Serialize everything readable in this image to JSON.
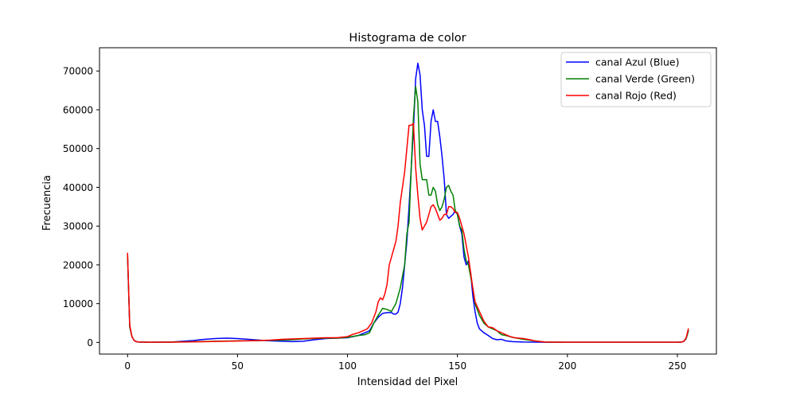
{
  "chart_data": {
    "type": "line",
    "title": "Histograma de color",
    "xlabel": "Intensidad del Pixel",
    "ylabel": "Frecuencia",
    "xlim": [
      -12.75,
      267.75
    ],
    "ylim": [
      -3000,
      76000
    ],
    "xticks": [
      0,
      50,
      100,
      150,
      200,
      250
    ],
    "yticks": [
      0,
      10000,
      20000,
      30000,
      40000,
      50000,
      60000,
      70000
    ],
    "legend_position": "top-right",
    "grid": false,
    "series": [
      {
        "name": "canal Azul (Blue)",
        "color": "#0000ff",
        "points": [
          [
            0,
            22500
          ],
          [
            1,
            4000
          ],
          [
            2,
            1500
          ],
          [
            3,
            500
          ],
          [
            4,
            200
          ],
          [
            5,
            100
          ],
          [
            10,
            50
          ],
          [
            20,
            100
          ],
          [
            30,
            500
          ],
          [
            35,
            800
          ],
          [
            40,
            1000
          ],
          [
            45,
            1100
          ],
          [
            50,
            1000
          ],
          [
            55,
            800
          ],
          [
            60,
            600
          ],
          [
            65,
            400
          ],
          [
            70,
            300
          ],
          [
            75,
            200
          ],
          [
            80,
            300
          ],
          [
            85,
            700
          ],
          [
            90,
            1000
          ],
          [
            95,
            1100
          ],
          [
            100,
            1200
          ],
          [
            105,
            1800
          ],
          [
            110,
            3000
          ],
          [
            112,
            5000
          ],
          [
            114,
            6500
          ],
          [
            116,
            7500
          ],
          [
            118,
            7700
          ],
          [
            120,
            7700
          ],
          [
            121,
            7300
          ],
          [
            122,
            7300
          ],
          [
            123,
            7800
          ],
          [
            124,
            10000
          ],
          [
            125,
            14000
          ],
          [
            126,
            20000
          ],
          [
            127,
            26000
          ],
          [
            128,
            35000
          ],
          [
            129,
            45000
          ],
          [
            130,
            55000
          ],
          [
            131,
            68000
          ],
          [
            132,
            72000
          ],
          [
            133,
            69000
          ],
          [
            134,
            60000
          ],
          [
            135,
            56000
          ],
          [
            136,
            48000
          ],
          [
            137,
            48000
          ],
          [
            138,
            57000
          ],
          [
            139,
            60000
          ],
          [
            140,
            57000
          ],
          [
            141,
            57000
          ],
          [
            142,
            53000
          ],
          [
            143,
            48000
          ],
          [
            144,
            42000
          ],
          [
            145,
            33000
          ],
          [
            146,
            32000
          ],
          [
            147,
            32500
          ],
          [
            148,
            33000
          ],
          [
            149,
            34000
          ],
          [
            150,
            33000
          ],
          [
            151,
            30000
          ],
          [
            152,
            28000
          ],
          [
            153,
            22000
          ],
          [
            154,
            20000
          ],
          [
            155,
            21000
          ],
          [
            156,
            18000
          ],
          [
            157,
            12000
          ],
          [
            158,
            8000
          ],
          [
            159,
            5000
          ],
          [
            160,
            3500
          ],
          [
            162,
            2500
          ],
          [
            164,
            1800
          ],
          [
            166,
            1000
          ],
          [
            168,
            700
          ],
          [
            170,
            800
          ],
          [
            172,
            400
          ],
          [
            175,
            200
          ],
          [
            180,
            100
          ],
          [
            190,
            50
          ],
          [
            200,
            40
          ],
          [
            250,
            40
          ],
          [
            252,
            100
          ],
          [
            253,
            300
          ],
          [
            254,
            1000
          ],
          [
            255,
            3000
          ]
        ]
      },
      {
        "name": "canal Verde (Green)",
        "color": "#008000",
        "points": [
          [
            0,
            22500
          ],
          [
            1,
            4000
          ],
          [
            2,
            1500
          ],
          [
            3,
            500
          ],
          [
            4,
            200
          ],
          [
            5,
            100
          ],
          [
            10,
            50
          ],
          [
            20,
            100
          ],
          [
            30,
            200
          ],
          [
            40,
            300
          ],
          [
            50,
            400
          ],
          [
            60,
            500
          ],
          [
            70,
            600
          ],
          [
            75,
            700
          ],
          [
            80,
            900
          ],
          [
            85,
            1000
          ],
          [
            90,
            1100
          ],
          [
            95,
            1100
          ],
          [
            100,
            1300
          ],
          [
            105,
            1800
          ],
          [
            108,
            2000
          ],
          [
            110,
            2500
          ],
          [
            112,
            5000
          ],
          [
            114,
            7000
          ],
          [
            116,
            8800
          ],
          [
            118,
            8500
          ],
          [
            120,
            8000
          ],
          [
            122,
            10000
          ],
          [
            124,
            14000
          ],
          [
            126,
            20000
          ],
          [
            127,
            28000
          ],
          [
            128,
            31000
          ],
          [
            129,
            45000
          ],
          [
            130,
            58000
          ],
          [
            131,
            66000
          ],
          [
            132,
            62000
          ],
          [
            133,
            46000
          ],
          [
            134,
            42000
          ],
          [
            135,
            42000
          ],
          [
            136,
            42000
          ],
          [
            137,
            38000
          ],
          [
            138,
            38000
          ],
          [
            139,
            40000
          ],
          [
            140,
            39000
          ],
          [
            141,
            35500
          ],
          [
            142,
            34000
          ],
          [
            143,
            35000
          ],
          [
            144,
            37000
          ],
          [
            145,
            40000
          ],
          [
            146,
            40500
          ],
          [
            147,
            39000
          ],
          [
            148,
            38000
          ],
          [
            149,
            34000
          ],
          [
            150,
            33000
          ],
          [
            151,
            30000
          ],
          [
            152,
            29000
          ],
          [
            153,
            24000
          ],
          [
            154,
            21000
          ],
          [
            155,
            20000
          ],
          [
            156,
            17000
          ],
          [
            157,
            14000
          ],
          [
            158,
            10000
          ],
          [
            160,
            7000
          ],
          [
            162,
            5000
          ],
          [
            164,
            4000
          ],
          [
            166,
            3500
          ],
          [
            168,
            3000
          ],
          [
            170,
            2000
          ],
          [
            172,
            1800
          ],
          [
            175,
            1300
          ],
          [
            180,
            800
          ],
          [
            185,
            400
          ],
          [
            190,
            100
          ],
          [
            200,
            50
          ],
          [
            250,
            50
          ],
          [
            252,
            100
          ],
          [
            253,
            300
          ],
          [
            254,
            1000
          ],
          [
            255,
            3000
          ]
        ]
      },
      {
        "name": "canal Rojo (Red)",
        "color": "#ff0000",
        "points": [
          [
            0,
            23000
          ],
          [
            1,
            4500
          ],
          [
            2,
            1500
          ],
          [
            3,
            500
          ],
          [
            4,
            200
          ],
          [
            5,
            100
          ],
          [
            10,
            50
          ],
          [
            20,
            50
          ],
          [
            30,
            150
          ],
          [
            40,
            250
          ],
          [
            50,
            350
          ],
          [
            60,
            500
          ],
          [
            65,
            600
          ],
          [
            70,
            800
          ],
          [
            75,
            900
          ],
          [
            80,
            1000
          ],
          [
            85,
            1100
          ],
          [
            90,
            1200
          ],
          [
            95,
            1200
          ],
          [
            100,
            1500
          ],
          [
            102,
            2000
          ],
          [
            105,
            2500
          ],
          [
            107,
            3000
          ],
          [
            109,
            3500
          ],
          [
            111,
            5000
          ],
          [
            113,
            8000
          ],
          [
            114,
            10500
          ],
          [
            115,
            11500
          ],
          [
            116,
            11000
          ],
          [
            117,
            12500
          ],
          [
            118,
            15000
          ],
          [
            119,
            20000
          ],
          [
            120,
            22000
          ],
          [
            121,
            24000
          ],
          [
            122,
            26000
          ],
          [
            123,
            30000
          ],
          [
            124,
            36000
          ],
          [
            125,
            40000
          ],
          [
            126,
            44000
          ],
          [
            127,
            50000
          ],
          [
            128,
            56000
          ],
          [
            129,
            56000
          ],
          [
            130,
            56500
          ],
          [
            131,
            45000
          ],
          [
            132,
            38000
          ],
          [
            133,
            32000
          ],
          [
            134,
            29000
          ],
          [
            135,
            30000
          ],
          [
            136,
            31000
          ],
          [
            137,
            33000
          ],
          [
            138,
            35000
          ],
          [
            139,
            35500
          ],
          [
            140,
            34500
          ],
          [
            141,
            33000
          ],
          [
            142,
            31500
          ],
          [
            143,
            32000
          ],
          [
            144,
            33000
          ],
          [
            145,
            33000
          ],
          [
            146,
            35000
          ],
          [
            147,
            35000
          ],
          [
            148,
            34500
          ],
          [
            149,
            33500
          ],
          [
            150,
            33500
          ],
          [
            151,
            32000
          ],
          [
            152,
            30000
          ],
          [
            153,
            28000
          ],
          [
            154,
            25000
          ],
          [
            155,
            22000
          ],
          [
            156,
            18000
          ],
          [
            157,
            14000
          ],
          [
            158,
            10500
          ],
          [
            160,
            8000
          ],
          [
            162,
            5500
          ],
          [
            164,
            4000
          ],
          [
            166,
            3800
          ],
          [
            168,
            3000
          ],
          [
            170,
            2500
          ],
          [
            172,
            2000
          ],
          [
            174,
            1500
          ],
          [
            176,
            1200
          ],
          [
            180,
            1000
          ],
          [
            183,
            700
          ],
          [
            186,
            300
          ],
          [
            190,
            100
          ],
          [
            200,
            50
          ],
          [
            250,
            50
          ],
          [
            252,
            100
          ],
          [
            253,
            300
          ],
          [
            254,
            1200
          ],
          [
            255,
            3500
          ]
        ]
      }
    ]
  }
}
